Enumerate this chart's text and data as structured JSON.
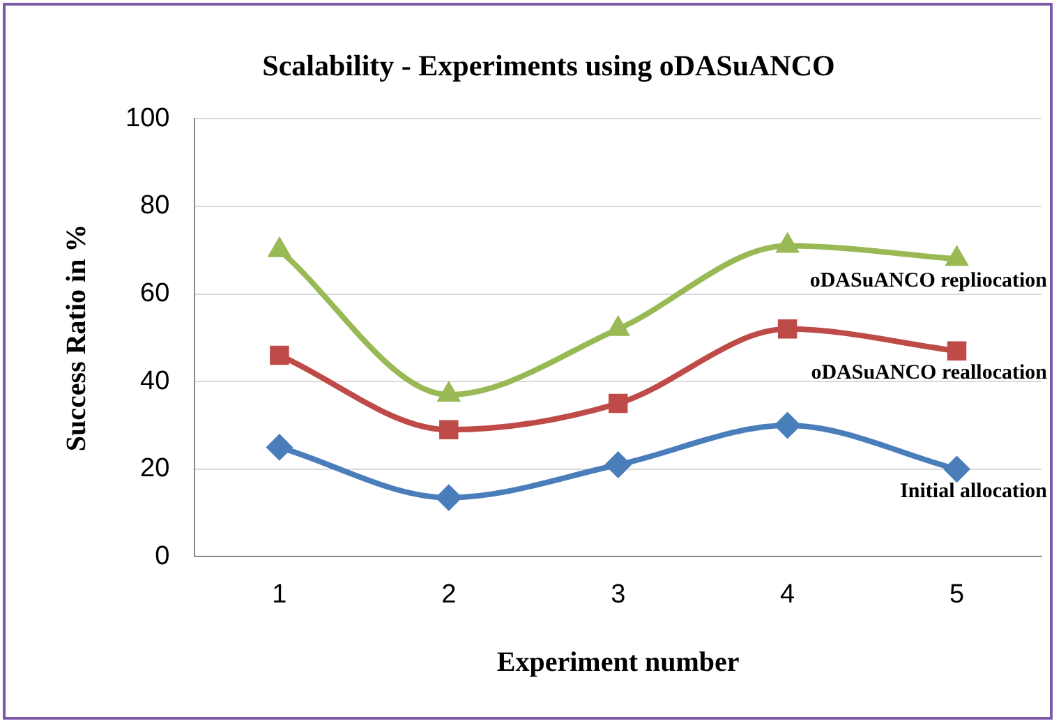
{
  "chart_data": {
    "type": "line",
    "title": "Scalability - Experiments using oDASuANCO",
    "xlabel": "Experiment number",
    "ylabel": "Success Ratio in %",
    "categories": [
      "1",
      "2",
      "3",
      "4",
      "5"
    ],
    "series": [
      {
        "name": "Initial allocation",
        "color": "#4a7ebb",
        "marker": "diamond",
        "values": [
          25,
          13.5,
          21,
          30,
          20
        ]
      },
      {
        "name": "oDASuANCO reallocation",
        "color": "#be4b48",
        "marker": "square",
        "values": [
          46,
          29,
          35,
          52,
          47
        ]
      },
      {
        "name": "oDASuANCO repliocation",
        "color": "#98b954",
        "marker": "triangle",
        "values": [
          70,
          37,
          52,
          71,
          68
        ]
      }
    ],
    "ylim": [
      0,
      100
    ],
    "yticks": [
      0,
      20,
      40,
      60,
      80,
      100
    ],
    "grid": "y",
    "legend": false,
    "line_style": "solid"
  }
}
